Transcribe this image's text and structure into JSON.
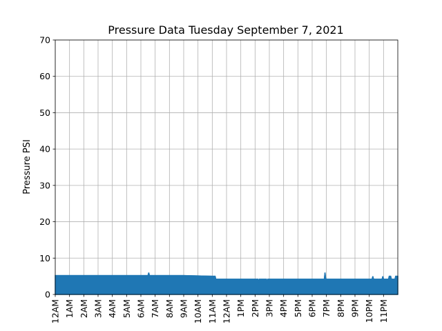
{
  "chart_data": {
    "type": "area",
    "title": "Pressure Data Tuesday September 7, 2021",
    "xlabel": "",
    "ylabel": "Pressure PSI",
    "ylim": [
      0,
      70
    ],
    "yticks": [
      0,
      10,
      20,
      30,
      40,
      50,
      60,
      70
    ],
    "xlim": [
      0,
      24
    ],
    "xtick_labels": [
      "12AM",
      "1AM",
      "2AM",
      "3AM",
      "4AM",
      "5AM",
      "6AM",
      "7AM",
      "8AM",
      "9AM",
      "10AM",
      "11AM",
      "12AM",
      "1PM",
      "2PM",
      "3PM",
      "4PM",
      "5PM",
      "6PM",
      "7PM",
      "8PM",
      "9PM",
      "10PM",
      "11PM"
    ],
    "grid": true,
    "series": [
      {
        "name": "Pressure",
        "color": "#1f77b4",
        "points": [
          [
            0.0,
            5.2
          ],
          [
            1.0,
            5.2
          ],
          [
            2.0,
            5.2
          ],
          [
            3.0,
            5.2
          ],
          [
            4.0,
            5.2
          ],
          [
            5.0,
            5.2
          ],
          [
            6.5,
            5.2
          ],
          [
            6.55,
            6.0
          ],
          [
            6.6,
            5.2
          ],
          [
            8.0,
            5.2
          ],
          [
            9.0,
            5.2
          ],
          [
            10.0,
            5.1
          ],
          [
            11.0,
            5.0
          ],
          [
            11.2,
            5.0
          ],
          [
            11.25,
            4.2
          ],
          [
            12.0,
            4.2
          ],
          [
            13.0,
            4.2
          ],
          [
            14.0,
            4.2
          ],
          [
            14.2,
            4.2
          ],
          [
            14.25,
            3.4
          ],
          [
            14.3,
            4.2
          ],
          [
            14.8,
            4.2
          ],
          [
            14.85,
            3.4
          ],
          [
            14.9,
            4.2
          ],
          [
            15.0,
            4.2
          ],
          [
            16.0,
            4.2
          ],
          [
            17.0,
            4.2
          ],
          [
            18.0,
            4.2
          ],
          [
            18.85,
            4.2
          ],
          [
            18.9,
            6.0
          ],
          [
            18.95,
            4.2
          ],
          [
            20.0,
            4.2
          ],
          [
            21.0,
            4.2
          ],
          [
            22.2,
            4.2
          ],
          [
            22.25,
            5.0
          ],
          [
            22.3,
            4.2
          ],
          [
            22.9,
            4.2
          ],
          [
            22.95,
            5.0
          ],
          [
            23.0,
            4.2
          ],
          [
            23.35,
            4.2
          ],
          [
            23.4,
            5.0
          ],
          [
            23.5,
            5.0
          ],
          [
            23.55,
            4.2
          ],
          [
            23.8,
            4.2
          ],
          [
            23.85,
            5.0
          ],
          [
            24.0,
            5.0
          ]
        ]
      }
    ]
  }
}
